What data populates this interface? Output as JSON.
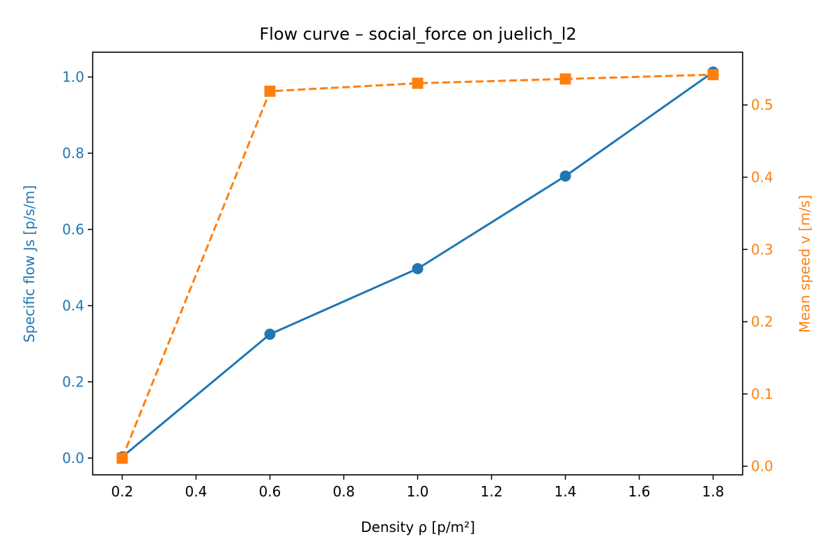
{
  "chart_data": {
    "type": "line",
    "title": "Flow curve – social_force on juelich_l2",
    "xlabel": "Density ρ [p/m²]",
    "ylabel_left": "Specific flow Js [p/s/m]",
    "ylabel_right": "Mean speed v [m/s]",
    "x": [
      0.2,
      0.6,
      1.0,
      1.4,
      1.8
    ],
    "xlim": [
      0.12,
      1.88
    ],
    "ylim_left": [
      -0.044,
      1.065
    ],
    "ylim_right": [
      -0.012,
      0.573
    ],
    "grid": false,
    "x_ticks": [
      "0.2",
      "0.4",
      "0.6",
      "0.8",
      "1.0",
      "1.2",
      "1.4",
      "1.6",
      "1.8"
    ],
    "y_left_ticks": [
      "0.0",
      "0.2",
      "0.4",
      "0.6",
      "0.8",
      "1.0"
    ],
    "y_right_ticks": [
      "0.0",
      "0.1",
      "0.2",
      "0.3",
      "0.4",
      "0.5"
    ],
    "series": [
      {
        "axis": "left",
        "values": [
          0.003,
          0.325,
          0.497,
          0.74,
          1.013
        ],
        "color": "#1f77b4",
        "linestyle": "solid",
        "marker": "circle"
      },
      {
        "axis": "right",
        "values": [
          0.011,
          0.519,
          0.53,
          0.536,
          0.542
        ],
        "color": "#ff7f0e",
        "linestyle": "dashed",
        "marker": "square"
      }
    ]
  }
}
